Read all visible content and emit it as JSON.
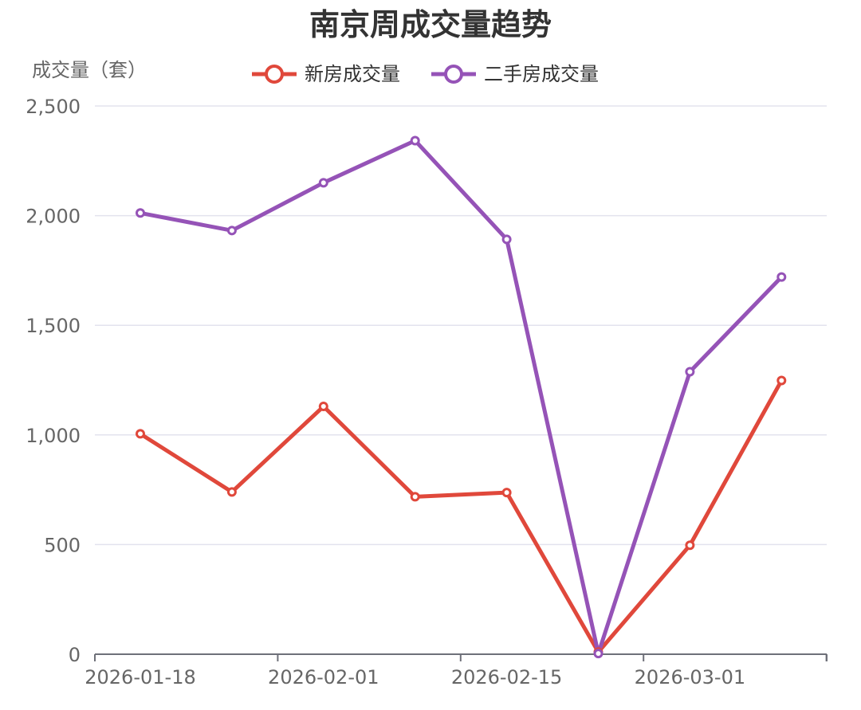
{
  "chart_data": {
    "type": "line",
    "title": "南京周成交量趋势",
    "ylabel": "成交量（套）",
    "xlabel": "",
    "x": [
      "2026-01-18",
      "2026-01-25",
      "2026-02-01",
      "2026-02-08",
      "2026-02-15",
      "2026-02-22",
      "2026-03-01",
      "2026-03-08"
    ],
    "x_tick_labels": [
      "2026-01-18",
      "2026-02-01",
      "2026-02-15",
      "2026-03-01"
    ],
    "ylim": [
      0,
      2500
    ],
    "y_ticks": [
      0,
      500,
      1000,
      1500,
      2000,
      2500
    ],
    "y_tick_labels": [
      "0",
      "500",
      "1,000",
      "1,500",
      "2,000",
      "2,500"
    ],
    "grid": "horizontal",
    "legend_position": "top-center",
    "series": [
      {
        "name": "新房成交量",
        "color": "#E0483B",
        "values": [
          1005,
          740,
          1130,
          718,
          737,
          10,
          497,
          1248
        ]
      },
      {
        "name": "二手房成交量",
        "color": "#9553B7",
        "values": [
          2012,
          1932,
          2150,
          2342,
          1892,
          3,
          1288,
          1720
        ]
      }
    ]
  }
}
